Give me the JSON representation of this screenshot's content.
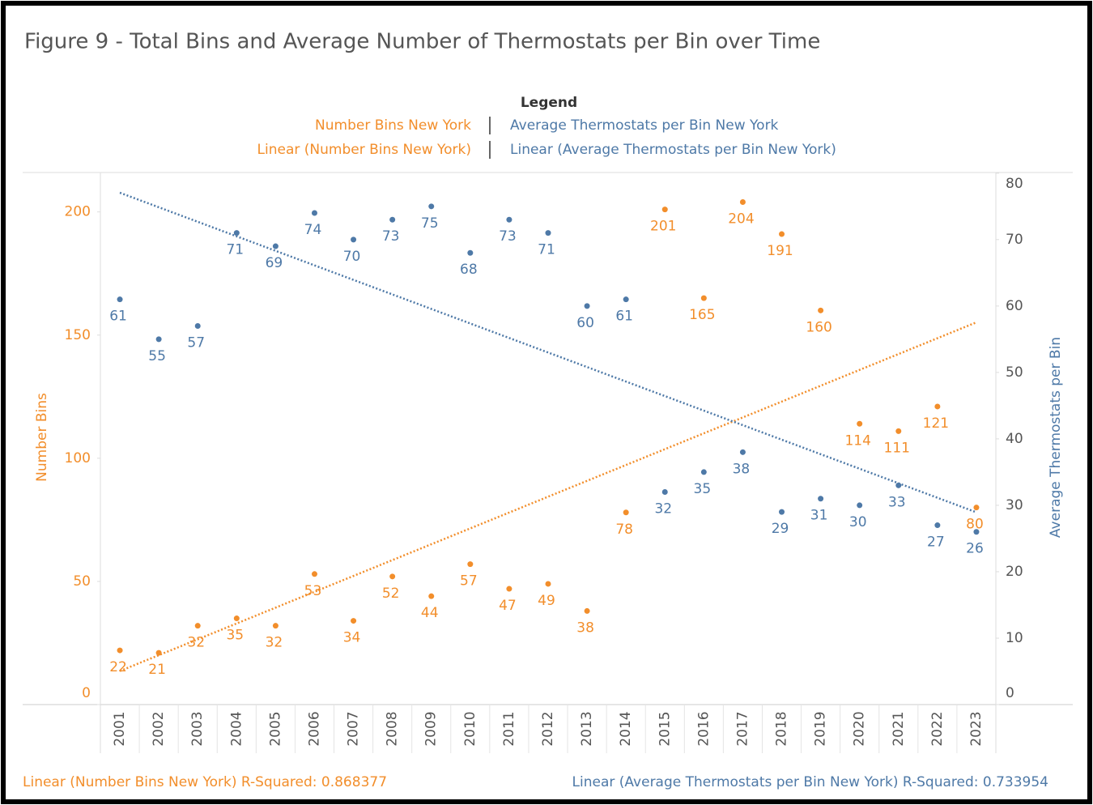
{
  "chart_data": {
    "type": "scatter",
    "title": "Figure 9 - Total Bins and Average Number of Thermostats per Bin over Time",
    "legend_title": "Legend",
    "categories": [
      "2001",
      "2002",
      "2003",
      "2004",
      "2005",
      "2006",
      "2007",
      "2008",
      "2009",
      "2010",
      "2011",
      "2012",
      "2013",
      "2014",
      "2015",
      "2016",
      "2017",
      "2018",
      "2019",
      "2020",
      "2021",
      "2022",
      "2023"
    ],
    "series": [
      {
        "name": "Number Bins New York",
        "color": "#f28e2b",
        "axis": "y",
        "trend_name": "Linear (Number Bins New York)",
        "trend_note": "Linear (Number Bins New York) R-Squared: 0.868377",
        "values": [
          22,
          21,
          32,
          35,
          32,
          53,
          34,
          52,
          44,
          57,
          47,
          49,
          38,
          78,
          201,
          165,
          204,
          191,
          160,
          114,
          111,
          121,
          80
        ]
      },
      {
        "name": "Average Thermostats per Bin New York",
        "color": "#4e79a7",
        "axis": "y2",
        "trend_name": "Linear (Average Thermostats per Bin New York)",
        "trend_note": "Linear (Average Thermostats per Bin New York) R-Squared: 0.733954",
        "values": [
          61,
          55,
          57,
          71,
          69,
          74,
          70,
          73,
          75,
          68,
          73,
          71,
          60,
          61,
          32,
          35,
          38,
          29,
          31,
          30,
          33,
          27,
          26
        ]
      }
    ],
    "ylabel": "Number Bins",
    "y2label": "Average Thermostats per Bin",
    "ylim": [
      0,
      216
    ],
    "yticks": [
      0,
      50,
      100,
      150,
      200
    ],
    "y2lim": [
      0,
      80.1
    ],
    "y2ticks": [
      0,
      10,
      20,
      30,
      40,
      50,
      60,
      70,
      80
    ],
    "trendline": "linear"
  }
}
